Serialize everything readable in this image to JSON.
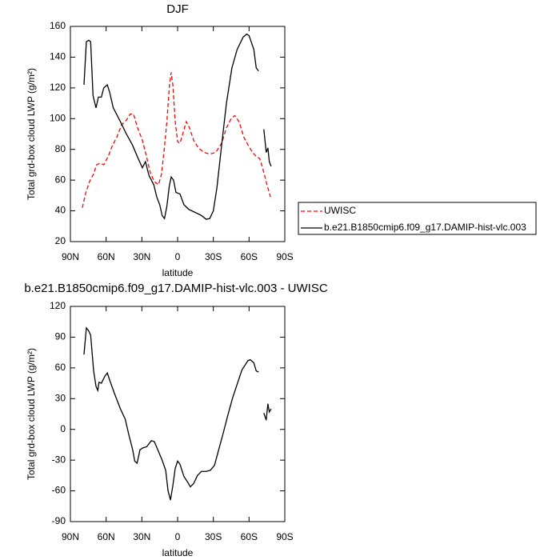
{
  "chart_data": [
    {
      "type": "line",
      "title": "DJF",
      "xlabel": "latitude",
      "ylabel": "Total grd-box cloud LWP (g/m²)",
      "xlim": [
        90,
        -90
      ],
      "xticks": [
        {
          "value": 90,
          "label": "90N"
        },
        {
          "value": 60,
          "label": "60N"
        },
        {
          "value": 30,
          "label": "30N"
        },
        0,
        {
          "value": -30,
          "label": "30S"
        },
        {
          "value": -60,
          "label": "60S"
        },
        {
          "value": -90,
          "label": "90S"
        }
      ],
      "ylim": [
        20,
        160
      ],
      "yticks": [
        20,
        40,
        60,
        80,
        100,
        120,
        140,
        160
      ],
      "legend": "outside-right",
      "series": [
        {
          "name": "UWISC",
          "color": "#ff0000",
          "linestyle": "dashed",
          "x": [
            80,
            77,
            74,
            70.5,
            68,
            65,
            62,
            58.5,
            55,
            51,
            47,
            43,
            39.7,
            37,
            33.6,
            29.6,
            26,
            23,
            19.5,
            16,
            13.5,
            11.5,
            9,
            6.8,
            5.4,
            4,
            2,
            0,
            -2,
            -4.7,
            -7.3,
            -10,
            -13.4,
            -17.4,
            -22,
            -27,
            -32,
            -37,
            -41,
            -45,
            -48,
            -51.6,
            -55.6,
            -59.7,
            -63,
            -66.4,
            -69,
            -72.4,
            -75,
            -78
          ],
          "values": [
            42,
            52,
            59,
            64,
            70,
            71,
            70,
            75,
            82,
            88,
            96,
            99,
            103,
            103,
            94,
            86,
            75,
            65,
            59,
            57,
            64,
            78,
            98,
            122,
            130,
            122,
            98,
            85,
            84,
            91,
            98,
            94,
            86,
            81,
            78,
            77,
            78,
            84,
            94,
            100,
            102,
            98,
            88,
            82,
            78,
            75,
            74,
            65,
            57,
            49
          ]
        },
        {
          "name": "b.e21.B1850cmip6.f09_g17.DAMIP-hist-vlc.003",
          "color": "#000000",
          "linestyle": "solid",
          "x": [
            78.6,
            76.6,
            74.6,
            73,
            71,
            68.5,
            66.5,
            64,
            62,
            59,
            57,
            54,
            48,
            43,
            38,
            33.6,
            29.6,
            27,
            24,
            20,
            17.5,
            15,
            13,
            11,
            9,
            7,
            5.4,
            3.4,
            1.4,
            -2,
            -5.3,
            -9.3,
            -14.7,
            -20,
            -24,
            -27,
            -30,
            -33,
            -37,
            -41,
            -45.6,
            -50,
            -55,
            -58,
            -60,
            -64,
            -66,
            -68,
            null,
            -72.4,
            -74.4,
            -75.8,
            -77,
            -78.5
          ],
          "values": [
            122,
            150,
            151,
            150,
            115,
            107,
            114,
            114,
            120,
            122,
            117,
            107,
            98,
            90,
            83,
            75,
            68,
            72,
            63,
            57,
            49,
            44,
            37,
            35,
            43,
            56,
            62,
            60,
            52,
            51,
            44,
            41,
            39,
            37,
            34.5,
            35,
            40,
            55,
            83,
            110,
            133,
            145,
            153,
            155,
            154,
            145,
            133,
            131,
            null,
            93,
            78,
            81,
            72,
            69
          ]
        }
      ]
    },
    {
      "type": "line",
      "title": "b.e21.B1850cmip6.f09_g17.DAMIP-hist-vlc.003 - UWISC",
      "xlabel": "latitude",
      "ylabel": "Total grd-box cloud LWP (g/m²)",
      "xlim": [
        90,
        -90
      ],
      "xticks": [
        {
          "value": 90,
          "label": "90N"
        },
        {
          "value": 60,
          "label": "60N"
        },
        {
          "value": 30,
          "label": "30N"
        },
        0,
        {
          "value": -30,
          "label": "30S"
        },
        {
          "value": -60,
          "label": "60S"
        },
        {
          "value": -90,
          "label": "90S"
        }
      ],
      "ylim": [
        -90,
        120
      ],
      "yticks": [
        -90,
        -60,
        -30,
        0,
        30,
        60,
        90,
        120
      ],
      "color": "#000000",
      "x": [
        78.6,
        76.6,
        74.6,
        73,
        70.5,
        68.5,
        67,
        66,
        64,
        61,
        59,
        57,
        53,
        48,
        44,
        41,
        37.7,
        36,
        34,
        31.6,
        29,
        26,
        22,
        19.5,
        17,
        13,
        10,
        8,
        6,
        4,
        2,
        0,
        -2,
        -5.3,
        -8.7,
        -10.7,
        -13.4,
        -16.7,
        -20,
        -24,
        -27.5,
        -31,
        -34,
        -38,
        -42,
        -46,
        -50,
        -54,
        -59,
        -61,
        -64,
        -66,
        -68,
        null,
        -72.4,
        -74.4,
        -75.8,
        -77,
        -78.5
      ],
      "values": [
        73,
        99,
        96,
        92,
        57,
        42,
        38,
        46,
        45,
        52,
        55,
        48,
        35,
        20,
        10,
        -5,
        -20,
        -31,
        -33,
        -20,
        -18,
        -17,
        -11,
        -12,
        -19,
        -30,
        -40,
        -60,
        -69,
        -55,
        -38,
        -31,
        -34,
        -46,
        -52,
        -56,
        -53,
        -45,
        -41,
        -41,
        -40,
        -35,
        -22,
        -5,
        13,
        30,
        44,
        58,
        67,
        68,
        65,
        57,
        56,
        null,
        16,
        9,
        25,
        17,
        20
      ]
    }
  ]
}
